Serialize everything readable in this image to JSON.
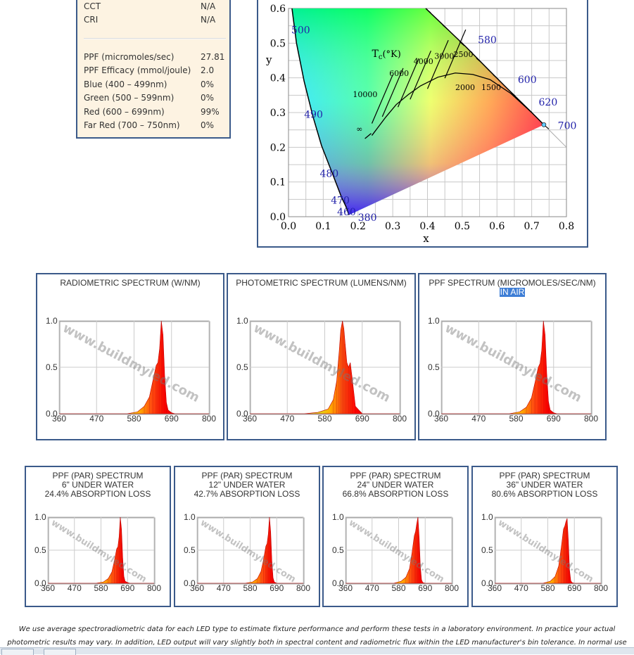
{
  "spec_table": {
    "rows_top": [
      {
        "label": "CCT",
        "value": "N/A"
      },
      {
        "label": "CRI",
        "value": "N/A"
      }
    ],
    "rows": [
      {
        "label": "PPF (micromoles/sec)",
        "value": "27.81"
      },
      {
        "label": "PPF Efficacy (mmol/joule)",
        "value": "2.0"
      },
      {
        "label": "Blue (400 – 499nm)",
        "value": "0%"
      },
      {
        "label": "Green (500 – 599nm)",
        "value": "0%"
      },
      {
        "label": "Red (600 – 699nm)",
        "value": "99%"
      },
      {
        "label": "Far Red (700 – 750nm)",
        "value": "0%"
      }
    ]
  },
  "chart_data": [
    {
      "type": "scatter",
      "name": "cie-1931-chromaticity",
      "xlabel": "x",
      "ylabel": "y",
      "xlim": [
        0.0,
        0.8
      ],
      "ylim": [
        0.0,
        0.6
      ],
      "x_ticks": [
        "0.0",
        "0.1",
        "0.2",
        "0.3",
        "0.4",
        "0.5",
        "0.6",
        "0.7",
        "0.8"
      ],
      "y_ticks": [
        "0.0",
        "0.1",
        "0.2",
        "0.3",
        "0.4",
        "0.5",
        "0.6"
      ],
      "locus_points": [
        {
          "x": 0.174,
          "y": 0.005
        },
        {
          "x": 0.165,
          "y": 0.03
        },
        {
          "x": 0.153,
          "y": 0.055
        },
        {
          "x": 0.13,
          "y": 0.115
        },
        {
          "x": 0.095,
          "y": 0.205
        },
        {
          "x": 0.07,
          "y": 0.29
        },
        {
          "x": 0.045,
          "y": 0.39
        },
        {
          "x": 0.023,
          "y": 0.5
        },
        {
          "x": 0.01,
          "y": 0.6
        },
        {
          "x": 0.395,
          "y": 0.6
        },
        {
          "x": 0.51,
          "y": 0.49
        },
        {
          "x": 0.575,
          "y": 0.424
        },
        {
          "x": 0.627,
          "y": 0.372
        },
        {
          "x": 0.69,
          "y": 0.31
        },
        {
          "x": 0.735,
          "y": 0.265
        }
      ],
      "wavelength_labels": [
        {
          "label": "500",
          "x": 0.008,
          "y": 0.538
        },
        {
          "label": "490",
          "x": 0.045,
          "y": 0.295
        },
        {
          "label": "480",
          "x": 0.09,
          "y": 0.125
        },
        {
          "label": "470",
          "x": 0.122,
          "y": 0.048
        },
        {
          "label": "460",
          "x": 0.14,
          "y": 0.014
        },
        {
          "label": "380",
          "x": 0.2,
          "y": -0.002
        },
        {
          "label": "580",
          "x": 0.545,
          "y": 0.51
        },
        {
          "label": "600",
          "x": 0.66,
          "y": 0.395
        },
        {
          "label": "620",
          "x": 0.72,
          "y": 0.33
        },
        {
          "label": "700",
          "x": 0.775,
          "y": 0.262
        }
      ],
      "planckian_locus": [
        {
          "x": 0.24,
          "y": 0.234
        },
        {
          "x": 0.28,
          "y": 0.287
        },
        {
          "x": 0.31,
          "y": 0.323
        },
        {
          "x": 0.345,
          "y": 0.352
        },
        {
          "x": 0.38,
          "y": 0.377
        },
        {
          "x": 0.43,
          "y": 0.402
        },
        {
          "x": 0.48,
          "y": 0.414
        },
        {
          "x": 0.53,
          "y": 0.41
        },
        {
          "x": 0.58,
          "y": 0.395
        },
        {
          "x": 0.64,
          "y": 0.355
        },
        {
          "x": 0.7,
          "y": 0.3
        }
      ],
      "cct_labels": [
        {
          "label": "T",
          "sub": "c",
          "suffix": "(°K)",
          "x": 0.24,
          "y": 0.46
        },
        {
          "label": "10000",
          "x": 0.185,
          "y": 0.345
        },
        {
          "label": "6000",
          "x": 0.29,
          "y": 0.405
        },
        {
          "label": "4000",
          "x": 0.36,
          "y": 0.44
        },
        {
          "label": "3000",
          "x": 0.42,
          "y": 0.455
        },
        {
          "label": "2500",
          "x": 0.475,
          "y": 0.46
        },
        {
          "label": "2000",
          "x": 0.48,
          "y": 0.365
        },
        {
          "label": "1500",
          "x": 0.555,
          "y": 0.365
        },
        {
          "label": "∞",
          "x": 0.195,
          "y": 0.245
        }
      ],
      "sample_point": {
        "x": 0.735,
        "y": 0.265
      }
    },
    {
      "type": "area",
      "name": "radiometric",
      "title": "RADIOMETRIC SPECTRUM (W/NM)",
      "highlight": "",
      "xlim": [
        360,
        800
      ],
      "ylim": [
        0.0,
        1.0
      ],
      "x_ticks": [
        "360",
        "470",
        "580",
        "690",
        "800"
      ],
      "y_ticks": [
        "1.0",
        "0.5",
        "0.0"
      ],
      "watermark": "www.buildmyled.com",
      "peaks": [
        {
          "center": 660,
          "height": 1.0,
          "width": 6
        },
        {
          "center": 640,
          "height": 0.45,
          "width": 12
        }
      ],
      "x": [
        360,
        560,
        590,
        610,
        625,
        635,
        645,
        650,
        655,
        660,
        665,
        670,
        675,
        680,
        690,
        700,
        800
      ],
      "y": [
        0.0,
        0.0,
        0.02,
        0.08,
        0.18,
        0.35,
        0.52,
        0.55,
        0.7,
        1.0,
        0.85,
        0.4,
        0.12,
        0.04,
        0.01,
        0.0,
        0.0
      ]
    },
    {
      "type": "area",
      "name": "photometric",
      "title": "PHOTOMETRIC SPECTRUM (LUMENS/NM)",
      "highlight": "",
      "xlim": [
        360,
        800
      ],
      "ylim": [
        0.0,
        1.0
      ],
      "x_ticks": [
        "360",
        "470",
        "580",
        "690",
        "800"
      ],
      "y_ticks": [
        "1.0",
        "0.5",
        "0.0"
      ],
      "watermark": "www.buildmyled.com",
      "x": [
        360,
        520,
        560,
        590,
        605,
        615,
        622,
        627,
        632,
        636,
        640,
        645,
        650,
        655,
        660,
        670,
        690,
        800
      ],
      "y": [
        0.0,
        0.0,
        0.015,
        0.05,
        0.15,
        0.35,
        0.65,
        0.9,
        1.0,
        0.92,
        0.75,
        0.55,
        0.5,
        0.55,
        0.4,
        0.08,
        0.0,
        0.0
      ]
    },
    {
      "type": "area",
      "name": "ppf",
      "title": "PPF SPECTRUM (MICROMOLES/SEC/NM)",
      "highlight": "IN AIR",
      "xlim": [
        360,
        800
      ],
      "ylim": [
        0.0,
        1.0
      ],
      "x_ticks": [
        "360",
        "470",
        "580",
        "690",
        "800"
      ],
      "y_ticks": [
        "1.0",
        "0.5",
        "0.0"
      ],
      "watermark": "www.buildmyled.com",
      "x": [
        360,
        560,
        590,
        610,
        625,
        635,
        645,
        650,
        655,
        660,
        665,
        670,
        675,
        680,
        690,
        700,
        800
      ],
      "y": [
        0.0,
        0.0,
        0.02,
        0.07,
        0.17,
        0.33,
        0.5,
        0.54,
        0.68,
        1.0,
        0.85,
        0.42,
        0.13,
        0.04,
        0.01,
        0.0,
        0.0
      ]
    },
    {
      "type": "area",
      "name": "ppf-6in",
      "title": "PPF (PAR) SPECTRUM",
      "line2": "6\" UNDER WATER",
      "line3": "24.4% ABSORPTION LOSS",
      "xlim": [
        360,
        800
      ],
      "ylim": [
        0.0,
        1.0
      ],
      "x_ticks": [
        "360",
        "470",
        "580",
        "690",
        "800"
      ],
      "y_ticks": [
        "1.0",
        "0.5",
        "0.0"
      ],
      "watermark": "www.buildmyled.com",
      "x": [
        360,
        560,
        590,
        610,
        625,
        635,
        645,
        650,
        655,
        660,
        665,
        670,
        675,
        680,
        690,
        700,
        800
      ],
      "y": [
        0.0,
        0.0,
        0.02,
        0.07,
        0.17,
        0.33,
        0.52,
        0.55,
        0.7,
        1.0,
        0.82,
        0.38,
        0.1,
        0.03,
        0.01,
        0.0,
        0.0
      ]
    },
    {
      "type": "area",
      "name": "ppf-12in",
      "title": "PPF (PAR) SPECTRUM",
      "line2": "12\" UNDER WATER",
      "line3": "42.7% ABSORPTION LOSS",
      "xlim": [
        360,
        800
      ],
      "ylim": [
        0.0,
        1.0
      ],
      "x_ticks": [
        "360",
        "470",
        "580",
        "690",
        "800"
      ],
      "y_ticks": [
        "1.0",
        "0.5",
        "0.0"
      ],
      "watermark": "www.buildmyled.com",
      "x": [
        360,
        560,
        590,
        610,
        625,
        635,
        645,
        650,
        655,
        660,
        665,
        670,
        675,
        680,
        690,
        700,
        800
      ],
      "y": [
        0.0,
        0.0,
        0.02,
        0.07,
        0.18,
        0.35,
        0.56,
        0.6,
        0.74,
        1.0,
        0.78,
        0.33,
        0.08,
        0.02,
        0.0,
        0.0,
        0.0
      ]
    },
    {
      "type": "area",
      "name": "ppf-24in",
      "title": "PPF (PAR) SPECTRUM",
      "line2": "24\" UNDER WATER",
      "line3": "66.8% ABSORPTION LOSS",
      "xlim": [
        360,
        800
      ],
      "ylim": [
        0.0,
        1.0
      ],
      "x_ticks": [
        "360",
        "470",
        "580",
        "690",
        "800"
      ],
      "y_ticks": [
        "1.0",
        "0.5",
        "0.0"
      ],
      "watermark": "www.buildmyled.com",
      "x": [
        360,
        560,
        590,
        610,
        625,
        635,
        645,
        650,
        655,
        660,
        665,
        670,
        675,
        680,
        690,
        700,
        800
      ],
      "y": [
        0.0,
        0.0,
        0.03,
        0.09,
        0.22,
        0.45,
        0.72,
        0.78,
        0.9,
        1.0,
        0.7,
        0.25,
        0.05,
        0.01,
        0.0,
        0.0,
        0.0
      ]
    },
    {
      "type": "area",
      "name": "ppf-36in",
      "title": "PPF (PAR) SPECTRUM",
      "line2": "36\" UNDER WATER",
      "line3": "80.6% ABSORPTION LOSS",
      "xlim": [
        360,
        800
      ],
      "ylim": [
        0.0,
        1.0
      ],
      "x_ticks": [
        "360",
        "470",
        "580",
        "690",
        "800"
      ],
      "y_ticks": [
        "1.0",
        "0.5",
        "0.0"
      ],
      "watermark": "www.buildmyled.com",
      "x": [
        360,
        560,
        590,
        610,
        625,
        635,
        645,
        650,
        655,
        660,
        665,
        670,
        675,
        680,
        690,
        700,
        800
      ],
      "y": [
        0.0,
        0.0,
        0.03,
        0.1,
        0.26,
        0.52,
        0.82,
        0.86,
        0.93,
        0.98,
        0.65,
        0.2,
        0.04,
        0.01,
        0.0,
        0.0,
        0.0
      ]
    }
  ],
  "footnote": {
    "line1": "We use average spectroradiometric data for each LED type to estimate fixture performance and perform these tests in a laboratory environment. In practice your actual",
    "line2": "photometric results may vary. In addition, LED output will vary slightly both in spectral content and radiometric flux within the LED manufacturer's bin tolerance. In normal use"
  },
  "colors": {
    "border": "#3b5a8a",
    "spec_bg": "#fdf3e2",
    "wavelength_label": "#2222aa",
    "highlight": "#3e7ed6"
  }
}
